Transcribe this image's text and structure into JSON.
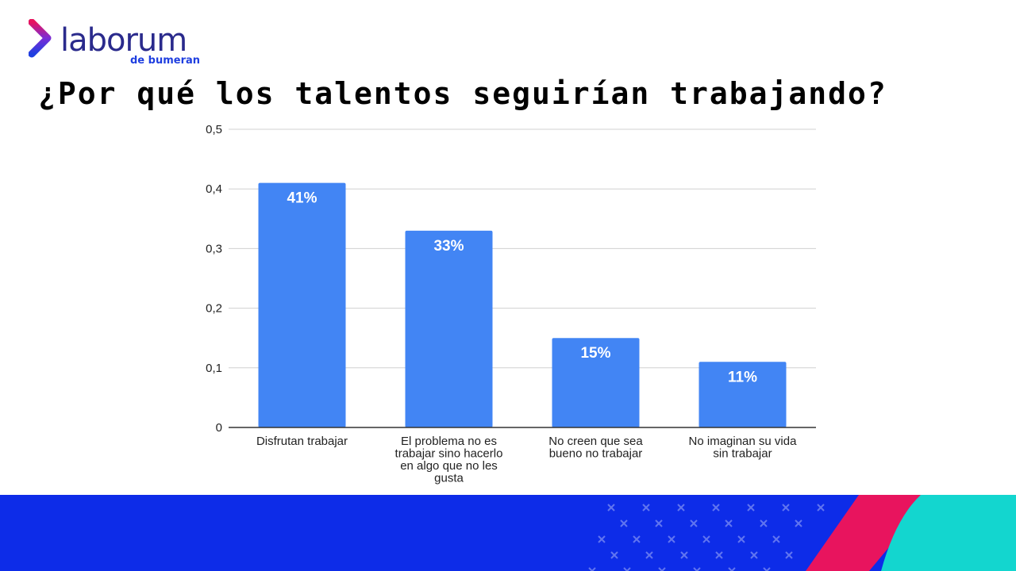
{
  "header": {
    "logo_text": "laborum",
    "logo_subtext": "de bumeran",
    "title": "¿Por qué los talentos seguirían trabajando?"
  },
  "colors": {
    "bar": "#4285f4",
    "gridline": "#d0d0d0",
    "axis": "#333333",
    "tick_text": "#222222",
    "logo_text": "#2a2a8c",
    "logo_sub": "#1f3fe0",
    "band_blue": "#0d2ce8",
    "band_pink": "#e8145e",
    "band_teal": "#13d6cf"
  },
  "chart_data": {
    "type": "bar",
    "title": "",
    "xlabel": "",
    "ylabel": "",
    "ylim": [
      0,
      0.5
    ],
    "yticks": [
      {
        "value": 0,
        "label": "0"
      },
      {
        "value": 0.1,
        "label": "0,1"
      },
      {
        "value": 0.2,
        "label": "0,2"
      },
      {
        "value": 0.3,
        "label": "0,3"
      },
      {
        "value": 0.4,
        "label": "0,4"
      },
      {
        "value": 0.5,
        "label": "0,5"
      }
    ],
    "grid": true,
    "categories": [
      [
        "Disfrutan trabajar"
      ],
      [
        "El problema no es",
        "trabajar sino hacerlo",
        "en algo que no les",
        "gusta"
      ],
      [
        "No creen que sea",
        "bueno no trabajar"
      ],
      [
        "No imaginan su vida",
        "sin trabajar"
      ]
    ],
    "values": [
      0.41,
      0.33,
      0.15,
      0.11
    ],
    "data_labels": [
      "41%",
      "33%",
      "15%",
      "11%"
    ]
  }
}
